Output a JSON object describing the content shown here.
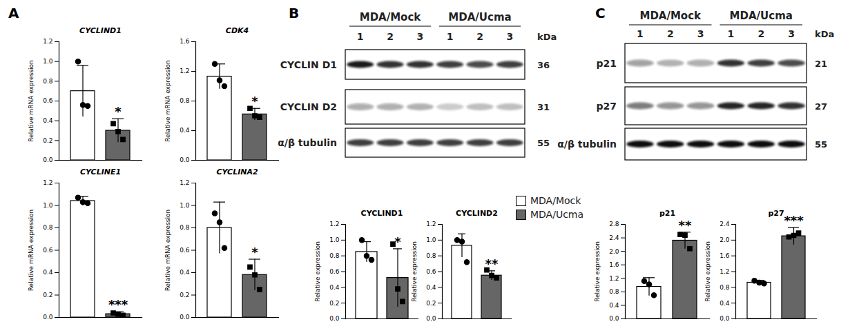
{
  "chart_data": [
    {
      "type": "bar",
      "title": "CYCLIND1",
      "ylabel": "Relative mRNA expression",
      "categories": [
        null
      ],
      "ylim": [
        0,
        1.2
      ],
      "yticks": [
        {
          "value": 0,
          "label": "0.0"
        },
        0.2,
        0.4,
        0.6,
        0.8,
        {
          "value": 1,
          "label": "1.0"
        },
        1.2
      ],
      "series": [
        {
          "name": "MDA/Mock",
          "color": "#ffffff",
          "marker": "circle",
          "values": [
            0.7
          ],
          "error": [
            0.26
          ],
          "points": [
            [
              1.0,
              0.56,
              0.55
            ]
          ]
        },
        {
          "name": "MDA/Ucma",
          "color": "#666666",
          "marker": "square",
          "values": [
            0.3
          ],
          "error": [
            0.12
          ],
          "points": [
            [
              0.37,
              0.29,
              0.21
            ]
          ],
          "annotation": "*"
        }
      ]
    },
    {
      "type": "bar",
      "title": "CDK4",
      "ylabel": "Relative mRNA expression",
      "categories": [
        null
      ],
      "ylim": [
        0,
        1.6
      ],
      "yticks": [
        {
          "value": 0,
          "label": "0.0"
        },
        0.4,
        0.8,
        1.2,
        1.6
      ],
      "series": [
        {
          "name": "MDA/Mock",
          "color": "#ffffff",
          "marker": "circle",
          "values": [
            1.13
          ],
          "error": [
            0.17
          ],
          "points": [
            [
              1.3,
              1.08,
              1.0
            ]
          ]
        },
        {
          "name": "MDA/Ucma",
          "color": "#666666",
          "marker": "square",
          "values": [
            0.62
          ],
          "error": [
            0.08
          ],
          "points": [
            [
              0.7,
              0.6,
              0.58
            ]
          ],
          "annotation": "*"
        }
      ]
    },
    {
      "type": "bar",
      "title": "CYCLINE1",
      "ylabel": "Relative mRNA expression",
      "categories": [
        null
      ],
      "ylim": [
        0,
        1.2
      ],
      "yticks": [
        {
          "value": 0,
          "label": "0.0"
        },
        0.2,
        0.4,
        0.6,
        0.8,
        {
          "value": 1,
          "label": "1.0"
        },
        1.2
      ],
      "series": [
        {
          "name": "MDA/Mock",
          "color": "#ffffff",
          "marker": "circle",
          "values": [
            1.04
          ],
          "error": [
            0.04
          ],
          "points": [
            [
              1.07,
              1.03,
              1.02
            ]
          ]
        },
        {
          "name": "MDA/Ucma",
          "color": "#666666",
          "marker": "square",
          "values": [
            0.03
          ],
          "error": [
            0.02
          ],
          "points": [
            [
              0.04,
              0.03,
              0.02
            ]
          ],
          "annotation": "***"
        }
      ]
    },
    {
      "type": "bar",
      "title": "CYCLINA2",
      "ylabel": "Relative mRNA expression",
      "categories": [
        null
      ],
      "ylim": [
        0,
        1.2
      ],
      "yticks": [
        {
          "value": 0,
          "label": "0.0"
        },
        0.2,
        0.4,
        0.6,
        0.8,
        {
          "value": 1,
          "label": "1.0"
        },
        1.2
      ],
      "series": [
        {
          "name": "MDA/Mock",
          "color": "#ffffff",
          "marker": "circle",
          "values": [
            0.8
          ],
          "error": [
            0.23
          ],
          "points": [
            [
              0.93,
              0.85,
              0.62
            ]
          ]
        },
        {
          "name": "MDA/Ucma",
          "color": "#666666",
          "marker": "square",
          "values": [
            0.38
          ],
          "error": [
            0.14
          ],
          "points": [
            [
              0.45,
              0.38,
              0.25
            ]
          ],
          "annotation": "*"
        }
      ]
    },
    {
      "type": "bar",
      "title": "CYCLIND1",
      "ylabel": "Relative expression",
      "categories": [
        null
      ],
      "ylim": [
        0,
        1.2
      ],
      "yticks": [
        {
          "value": 0,
          "label": "0.0"
        },
        0.2,
        0.4,
        0.6,
        0.8,
        {
          "value": 1,
          "label": "1.0"
        },
        1.2
      ],
      "series": [
        {
          "name": "MDA/Mock",
          "color": "#ffffff",
          "marker": "circle",
          "values": [
            0.85
          ],
          "error": [
            0.13
          ],
          "points": [
            [
              1.0,
              0.8,
              0.75
            ]
          ]
        },
        {
          "name": "MDA/Ucma",
          "color": "#666666",
          "marker": "square",
          "values": [
            0.52
          ],
          "error": [
            0.37
          ],
          "points": [
            [
              0.95,
              0.38,
              0.22
            ]
          ],
          "annotation": "*"
        }
      ]
    },
    {
      "type": "bar",
      "title": "CYCLIND2",
      "ylabel": "Relative expression",
      "categories": [
        null
      ],
      "legend": "right",
      "ylim": [
        0,
        1.2
      ],
      "yticks": [
        {
          "value": 0,
          "label": "0.0"
        },
        0.2,
        0.4,
        0.6,
        0.8,
        {
          "value": 1,
          "label": "1.0"
        },
        1.2
      ],
      "series": [
        {
          "name": "MDA/Mock",
          "color": "#ffffff",
          "marker": "circle",
          "values": [
            0.93
          ],
          "error": [
            0.15
          ],
          "points": [
            [
              1.0,
              0.98,
              0.72
            ]
          ]
        },
        {
          "name": "MDA/Ucma",
          "color": "#666666",
          "marker": "square",
          "values": [
            0.55
          ],
          "error": [
            0.06
          ],
          "points": [
            [
              0.62,
              0.55,
              0.52
            ]
          ],
          "annotation": "**"
        }
      ]
    },
    {
      "type": "bar",
      "title": "p21",
      "ylabel": "Relative expression",
      "categories": [
        null
      ],
      "ylim": [
        0,
        2.8
      ],
      "yticks": [
        {
          "value": 0,
          "label": "0.0"
        },
        0.4,
        0.8,
        1.2,
        1.6,
        {
          "value": 2,
          "label": "2.0"
        },
        2.4,
        2.8
      ],
      "series": [
        {
          "name": "MDA/Mock",
          "color": "#ffffff",
          "marker": "circle",
          "values": [
            0.95
          ],
          "error": [
            0.27
          ],
          "points": [
            [
              1.12,
              1.02,
              0.7
            ]
          ]
        },
        {
          "name": "MDA/Ucma",
          "color": "#666666",
          "marker": "square",
          "values": [
            2.32
          ],
          "error": [
            0.25
          ],
          "points": [
            [
              2.5,
              2.48,
              2.08
            ]
          ],
          "annotation": "**"
        }
      ]
    },
    {
      "type": "bar",
      "title": "p27",
      "ylabel": "Relative expression",
      "categories": [
        null
      ],
      "ylim": [
        0,
        2.4
      ],
      "yticks": [
        {
          "value": 0,
          "label": "0.0"
        },
        0.4,
        0.8,
        1.2,
        1.6,
        {
          "value": 2,
          "label": "2.0"
        },
        2.4
      ],
      "series": [
        {
          "name": "MDA/Mock",
          "color": "#ffffff",
          "marker": "circle",
          "values": [
            0.92
          ],
          "error": [
            0.06
          ],
          "points": [
            [
              0.97,
              0.92,
              0.9
            ]
          ]
        },
        {
          "name": "MDA/Ucma",
          "color": "#666666",
          "marker": "square",
          "values": [
            2.1
          ],
          "error": [
            0.22
          ],
          "points": [
            [
              2.08,
              2.12,
              2.18
            ]
          ],
          "annotation": "***"
        }
      ]
    }
  ],
  "panels": [
    {
      "label": "A"
    },
    {
      "label": "B",
      "blot": {
        "groups": [
          "MDA/Mock",
          "MDA/Ucma"
        ],
        "lanes": [
          "1",
          "2",
          "3"
        ],
        "unit": "kDa",
        "rows": [
          {
            "label": "CYCLIN D1",
            "kda": 36,
            "intensity": [
              0.95,
              0.85,
              0.85,
              0.8,
              0.75,
              0.8
            ]
          },
          {
            "label": "CYCLIN D2",
            "kda": 31,
            "intensity": [
              0.35,
              0.35,
              0.3,
              0.2,
              0.25,
              0.25
            ]
          },
          {
            "label": "α/β tubulin",
            "kda": 55,
            "intensity": [
              0.8,
              0.8,
              0.8,
              0.8,
              0.8,
              0.8
            ]
          }
        ]
      }
    },
    {
      "label": "C",
      "blot": {
        "groups": [
          "MDA/Mock",
          "MDA/Ucma"
        ],
        "lanes": [
          "1",
          "2",
          "3"
        ],
        "unit": "kDa",
        "rows": [
          {
            "label": "p21",
            "kda": 21,
            "intensity": [
              0.4,
              0.3,
              0.35,
              0.85,
              0.8,
              0.75
            ]
          },
          {
            "label": "p27",
            "kda": 27,
            "intensity": [
              0.55,
              0.45,
              0.45,
              0.9,
              0.9,
              0.85
            ]
          },
          {
            "label": "α/β tubulin",
            "kda": 55,
            "intensity": [
              1,
              1,
              1,
              1,
              1,
              1
            ]
          }
        ]
      }
    }
  ]
}
